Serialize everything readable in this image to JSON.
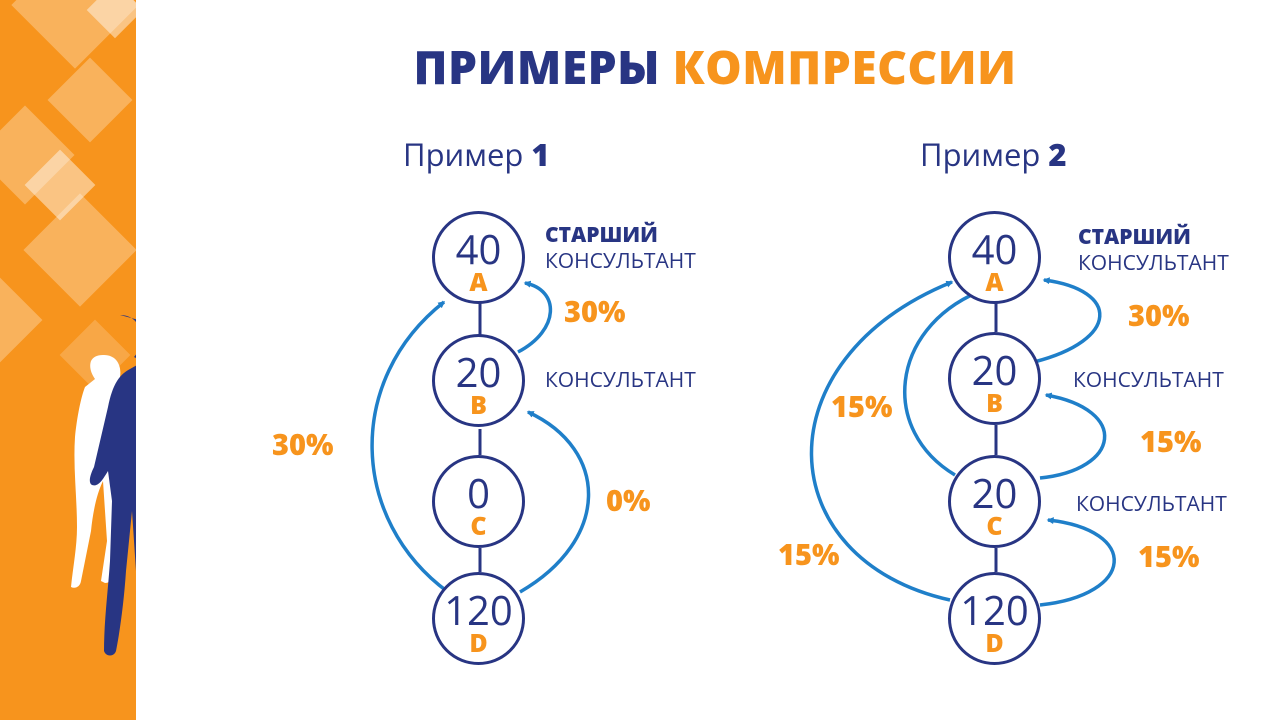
{
  "slide": {
    "title_part1": "ПРИМЕРЫ",
    "title_part2": "КОМПРЕССИИ"
  },
  "colors": {
    "navy": "#283583",
    "orange": "#f7941d",
    "arrow_blue": "#1f7fc9"
  },
  "decor": {
    "icon": "silhouette-people-icon"
  },
  "example1": {
    "heading": "Пример",
    "number": "1",
    "nodes": [
      {
        "value": "40",
        "letter": "A"
      },
      {
        "value": "20",
        "letter": "B"
      },
      {
        "value": "0",
        "letter": "C"
      },
      {
        "value": "120",
        "letter": "D"
      }
    ],
    "roles": {
      "a_line1": "СТАРШИЙ",
      "a_line2": "КОНСУЛЬТАНТ",
      "b": "КОНСУЛЬТАНТ"
    },
    "percents": {
      "b_to_a": "30%",
      "d_to_a": "30%",
      "d_to_b": "0%"
    }
  },
  "example2": {
    "heading": "Пример",
    "number": "2",
    "nodes": [
      {
        "value": "40",
        "letter": "A"
      },
      {
        "value": "20",
        "letter": "B"
      },
      {
        "value": "20",
        "letter": "C"
      },
      {
        "value": "120",
        "letter": "D"
      }
    ],
    "roles": {
      "a_line1": "СТАРШИЙ",
      "a_line2": "КОНСУЛЬТАНТ",
      "b": "КОНСУЛЬТАНТ",
      "c": "КОНСУЛЬТАНТ"
    },
    "percents": {
      "b_to_a": "30%",
      "c_to_b": "15%",
      "d_to_c": "15%",
      "c_to_a": "15%",
      "d_to_a": "15%"
    }
  }
}
